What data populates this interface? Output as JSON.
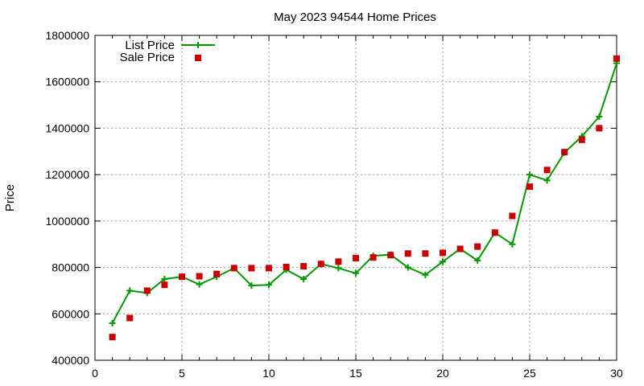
{
  "chart_data": {
    "type": "line",
    "title": "May 2023 94544 Home Prices",
    "xlabel": "",
    "ylabel": "Price",
    "xlim": [
      0,
      30
    ],
    "ylim": [
      400000,
      1800000
    ],
    "x_ticks": [
      0,
      5,
      10,
      15,
      20,
      25,
      30
    ],
    "y_ticks": [
      400000,
      600000,
      800000,
      1000000,
      1200000,
      1400000,
      1600000,
      1800000
    ],
    "grid": true,
    "legend_position": "top-left",
    "x": [
      1,
      2,
      3,
      4,
      5,
      6,
      7,
      8,
      9,
      10,
      11,
      12,
      13,
      14,
      15,
      16,
      17,
      18,
      19,
      20,
      21,
      22,
      23,
      24,
      25,
      26,
      27,
      28,
      29,
      30
    ],
    "series": [
      {
        "name": "List Price",
        "style": "line-plus",
        "color": "#009900",
        "values": [
          560000,
          700000,
          690000,
          750000,
          760000,
          727000,
          760000,
          797000,
          722000,
          725000,
          790000,
          750000,
          815000,
          797000,
          775000,
          850000,
          855000,
          800000,
          768000,
          825000,
          880000,
          830000,
          950000,
          900000,
          1200000,
          1175000,
          1295000,
          1365000,
          1450000,
          1680000
        ]
      },
      {
        "name": "Sale Price",
        "style": "square-points",
        "color": "#cc0000",
        "values": [
          500000,
          582000,
          700000,
          725000,
          760000,
          762000,
          772000,
          797000,
          797000,
          797000,
          802000,
          805000,
          815000,
          825000,
          840000,
          843000,
          853000,
          860000,
          860000,
          863000,
          880000,
          890000,
          950000,
          1022000,
          1148000,
          1220000,
          1297000,
          1350000,
          1400000,
          1700000
        ]
      }
    ]
  }
}
